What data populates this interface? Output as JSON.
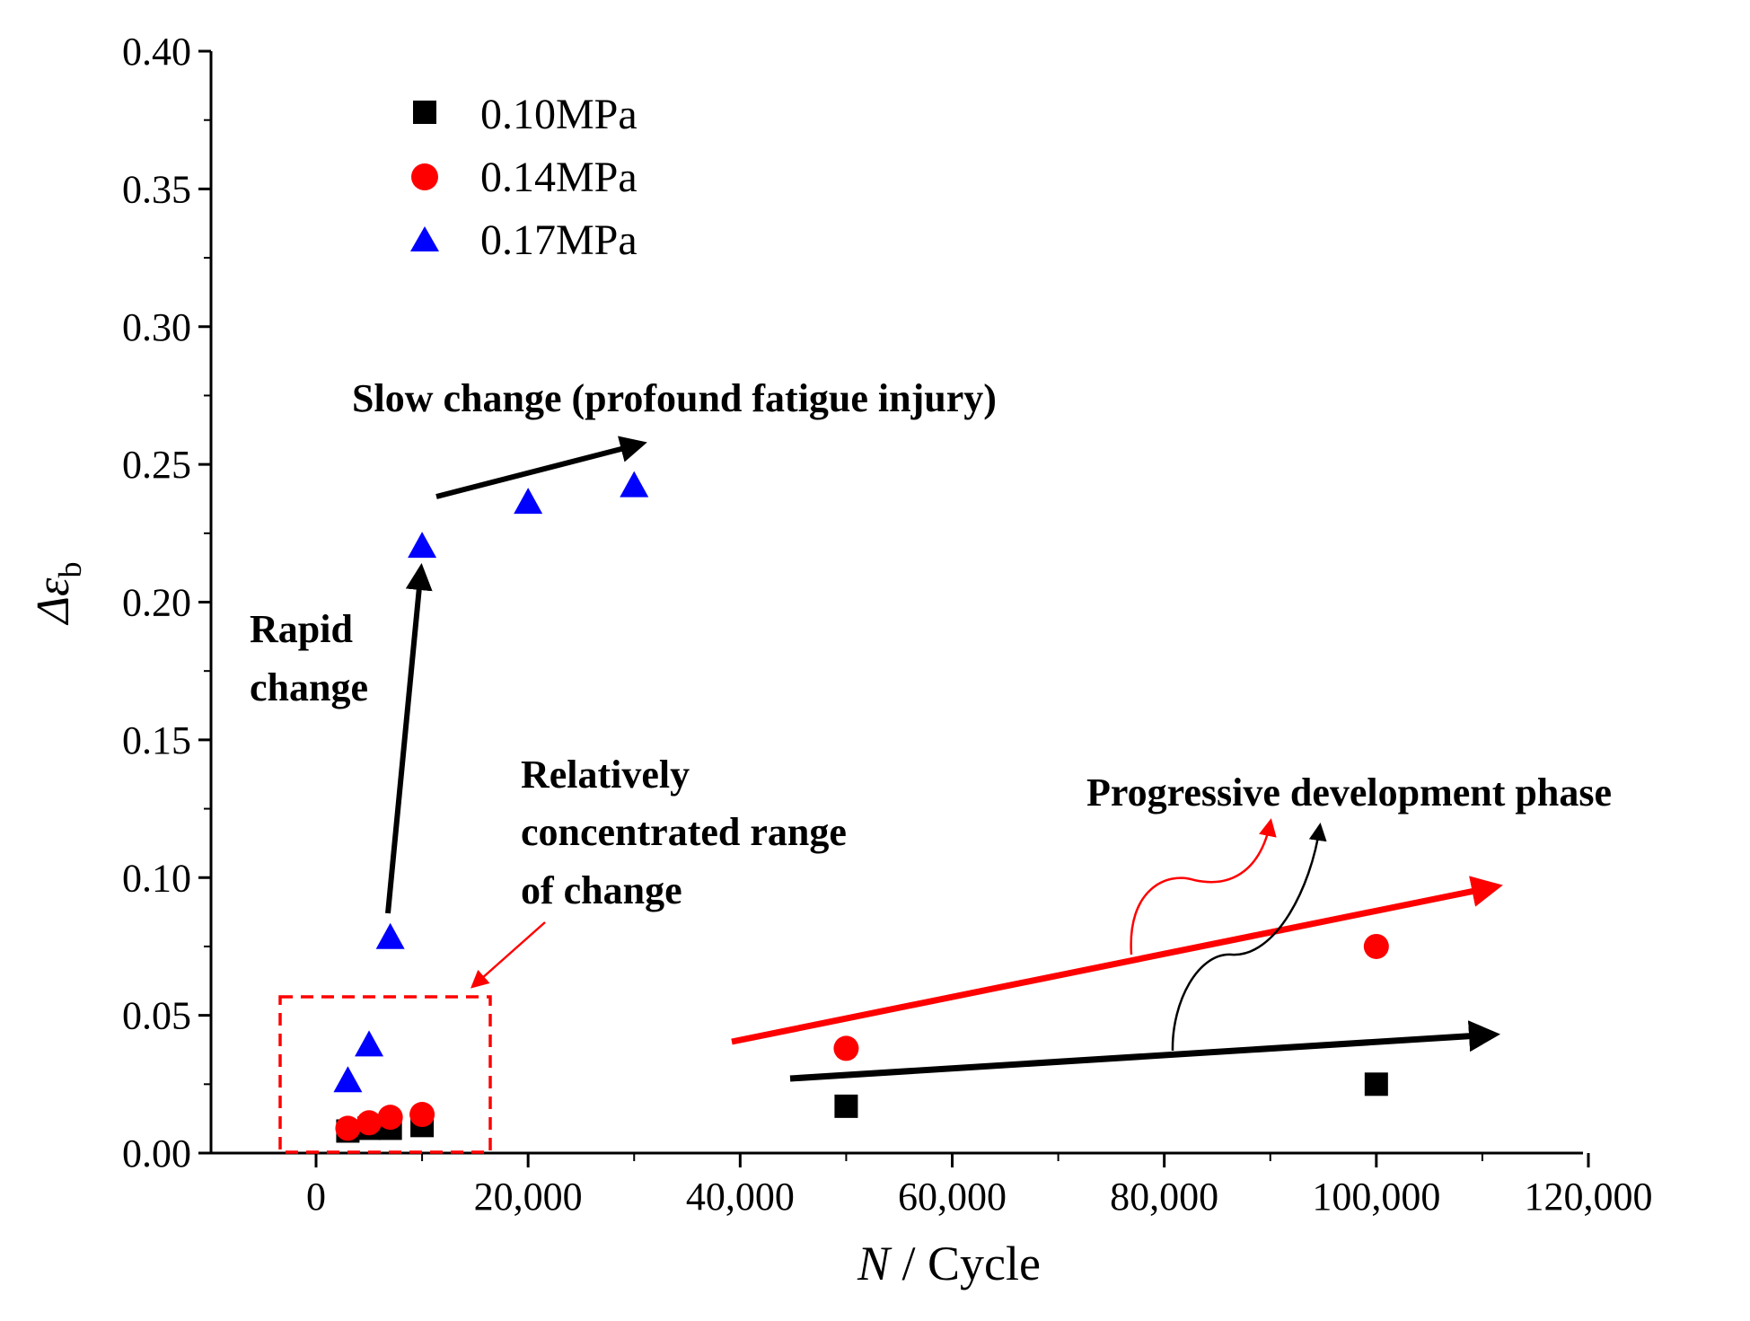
{
  "chart_data": {
    "type": "scatter",
    "title": "",
    "xlabel_italic": "N",
    "xlabel_rest": " / Cycle",
    "ylabel_main": "Δε",
    "ylabel_sub": "b",
    "xlim": [
      -10000,
      120000
    ],
    "ylim": [
      0,
      0.4
    ],
    "x_ticks": [
      0,
      20000,
      40000,
      60000,
      80000,
      100000,
      120000
    ],
    "x_tick_labels": [
      "0",
      "20,000",
      "40,000",
      "60,000",
      "80,000",
      "100,000",
      "120,000"
    ],
    "y_ticks": [
      0,
      0.05,
      0.1,
      0.15,
      0.2,
      0.25,
      0.3,
      0.35,
      0.4
    ],
    "y_tick_labels": [
      "0.00",
      "0.05",
      "0.10",
      "0.15",
      "0.20",
      "0.25",
      "0.30",
      "0.35",
      "0.40"
    ],
    "legend_position": "top-left",
    "series": [
      {
        "name": "0.10MPa",
        "marker": "square",
        "color": "#000000",
        "points": [
          [
            3000,
            0.008
          ],
          [
            5000,
            0.009
          ],
          [
            7000,
            0.009
          ],
          [
            10000,
            0.01
          ],
          [
            50000,
            0.017
          ],
          [
            100000,
            0.025
          ]
        ]
      },
      {
        "name": "0.14MPa",
        "marker": "circle",
        "color": "#ff0000",
        "points": [
          [
            3000,
            0.009
          ],
          [
            5000,
            0.011
          ],
          [
            7000,
            0.013
          ],
          [
            10000,
            0.014
          ],
          [
            50000,
            0.038
          ],
          [
            100000,
            0.075
          ]
        ]
      },
      {
        "name": "0.17MPa",
        "marker": "triangle",
        "color": "#0000ff",
        "points": [
          [
            3000,
            0.026
          ],
          [
            5000,
            0.039
          ],
          [
            7000,
            0.078
          ],
          [
            10000,
            0.22
          ],
          [
            20000,
            0.236
          ],
          [
            30000,
            0.242
          ]
        ]
      }
    ],
    "annotations": {
      "slow_change": "Slow change (profound fatigue injury)",
      "rapid_line1": "Rapid",
      "rapid_line2": "change",
      "concentrated_line1": "Relatively",
      "concentrated_line2": "concentrated range",
      "concentrated_line3": "of change",
      "progressive": "Progressive development phase"
    }
  }
}
